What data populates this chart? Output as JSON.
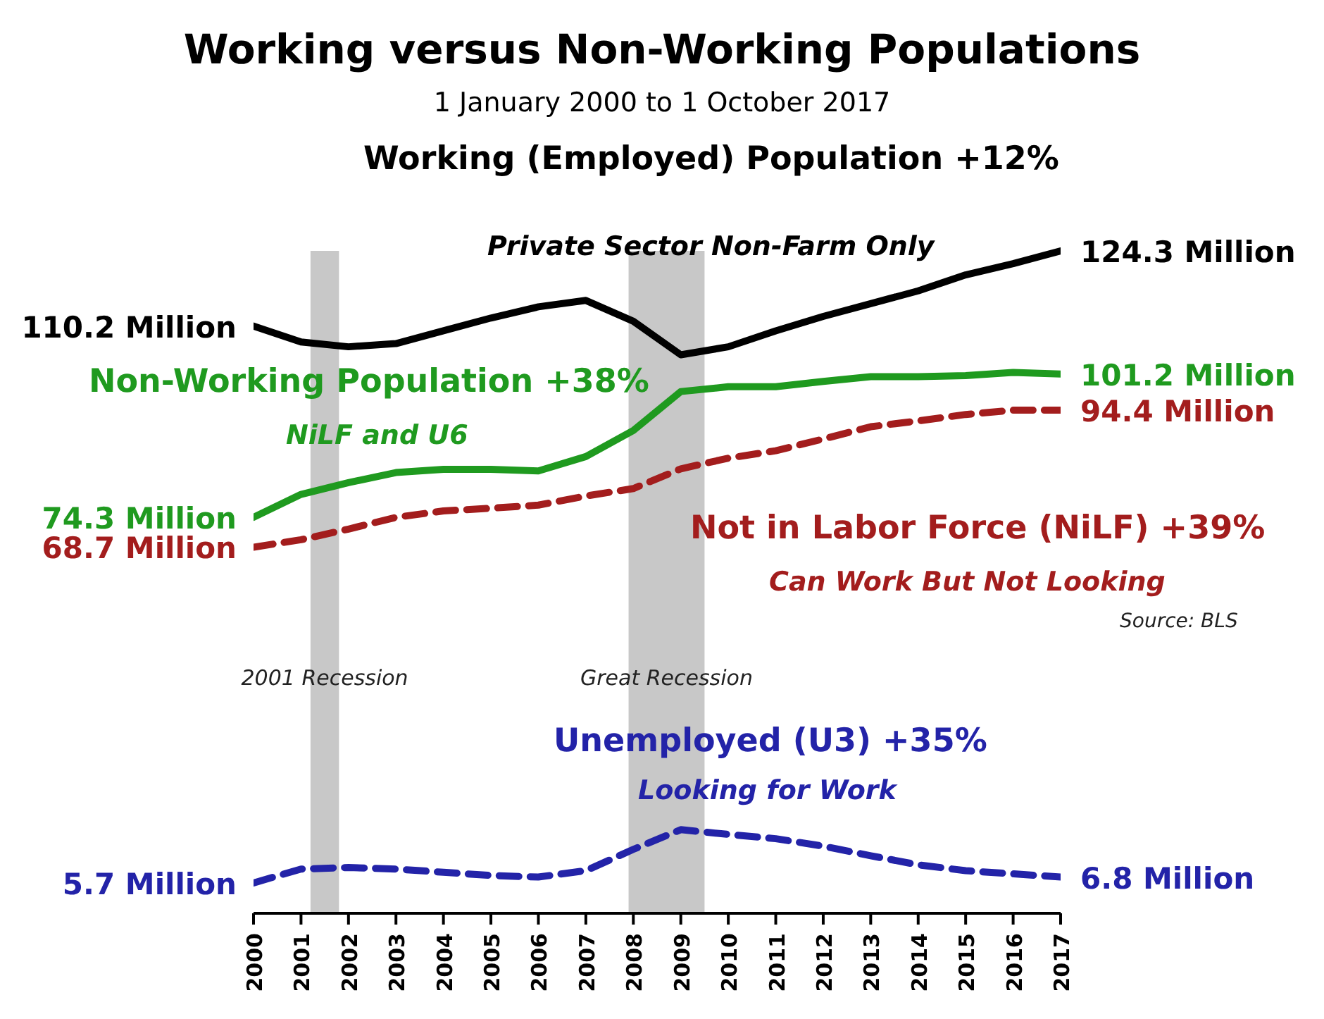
{
  "chart_data": {
    "type": "line",
    "title": "Working versus Non-Working Populations",
    "subtitle": "1 January 2000 to 1 October 2017",
    "x": [
      2000,
      2001,
      2002,
      2003,
      2004,
      2005,
      2006,
      2007,
      2008,
      2009,
      2010,
      2011,
      2012,
      2013,
      2014,
      2015,
      2016,
      2017
    ],
    "xlim": [
      2000,
      2017
    ],
    "xticks": [
      2000,
      2001,
      2002,
      2003,
      2004,
      2005,
      2006,
      2007,
      2008,
      2009,
      2010,
      2011,
      2012,
      2013,
      2014,
      2015,
      2016,
      2017
    ],
    "series": [
      {
        "name": "Working (Employed) Population +12%",
        "color": "#000000",
        "line_style": "solid",
        "values": [
          110.2,
          107.2,
          106.3,
          106.9,
          109.3,
          111.7,
          113.8,
          115,
          111.1,
          104.8,
          106.3,
          109.3,
          112,
          114.4,
          116.8,
          119.8,
          121.9,
          124.3
        ],
        "value_labels": [
          "110.2 Million",
          null,
          null,
          null,
          null,
          null,
          null,
          null,
          null,
          null,
          null,
          null,
          null,
          null,
          null,
          null,
          null,
          "124.3 Million"
        ]
      },
      {
        "name": "Non-Working Population +38%",
        "color": "#1f9a1f",
        "line_style": "solid",
        "values": [
          74.3,
          78.6,
          80.8,
          82.7,
          83.3,
          83.3,
          83,
          85.7,
          90.6,
          97.9,
          98.8,
          98.8,
          99.8,
          100.7,
          100.7,
          100.9,
          101.5,
          101.2
        ],
        "value_labels": [
          "74.3 Million",
          null,
          null,
          null,
          null,
          null,
          null,
          null,
          null,
          null,
          null,
          null,
          null,
          null,
          null,
          null,
          null,
          "101.2 Million"
        ]
      },
      {
        "name": "Not in Labor Force (NiLF) +39%",
        "color": "#a31d1d",
        "line_style": "dashed",
        "values": [
          68.7,
          70.1,
          72.1,
          74.3,
          75.5,
          76,
          76.6,
          78.3,
          79.7,
          83.4,
          85.4,
          86.8,
          89,
          91.3,
          92.4,
          93.6,
          94.4,
          94.4
        ],
        "value_labels": [
          "68.7 Million",
          null,
          null,
          null,
          null,
          null,
          null,
          null,
          null,
          null,
          null,
          null,
          null,
          null,
          null,
          null,
          null,
          "94.4 Million"
        ]
      },
      {
        "name": "Unemployed (U3) +35%",
        "color": "#2323a8",
        "line_style": "dashed",
        "values": [
          5.7,
          8.3,
          8.6,
          8.3,
          7.7,
          7.1,
          6.8,
          8,
          12,
          15.7,
          14.8,
          14,
          12.6,
          10.8,
          9.1,
          8,
          7.4,
          6.8
        ],
        "value_labels": [
          "5.7 Million",
          null,
          null,
          null,
          null,
          null,
          null,
          null,
          null,
          null,
          null,
          null,
          null,
          null,
          null,
          null,
          null,
          "6.8 Million"
        ]
      }
    ],
    "bands": [
      {
        "axis": "x",
        "from": 2001.2,
        "to": 2001.8,
        "label": "2001 Recession",
        "color": "#c8c8c8"
      },
      {
        "axis": "x",
        "from": 2007.9,
        "to": 2009.5,
        "label": "Great Recession",
        "color": "#c8c8c8"
      }
    ],
    "annotations": [
      "Private Sector Non-Farm Only",
      "NiLF and U6",
      "Can Work But Not Looking",
      "Looking for Work",
      "Source: BLS"
    ],
    "marker": "none"
  }
}
